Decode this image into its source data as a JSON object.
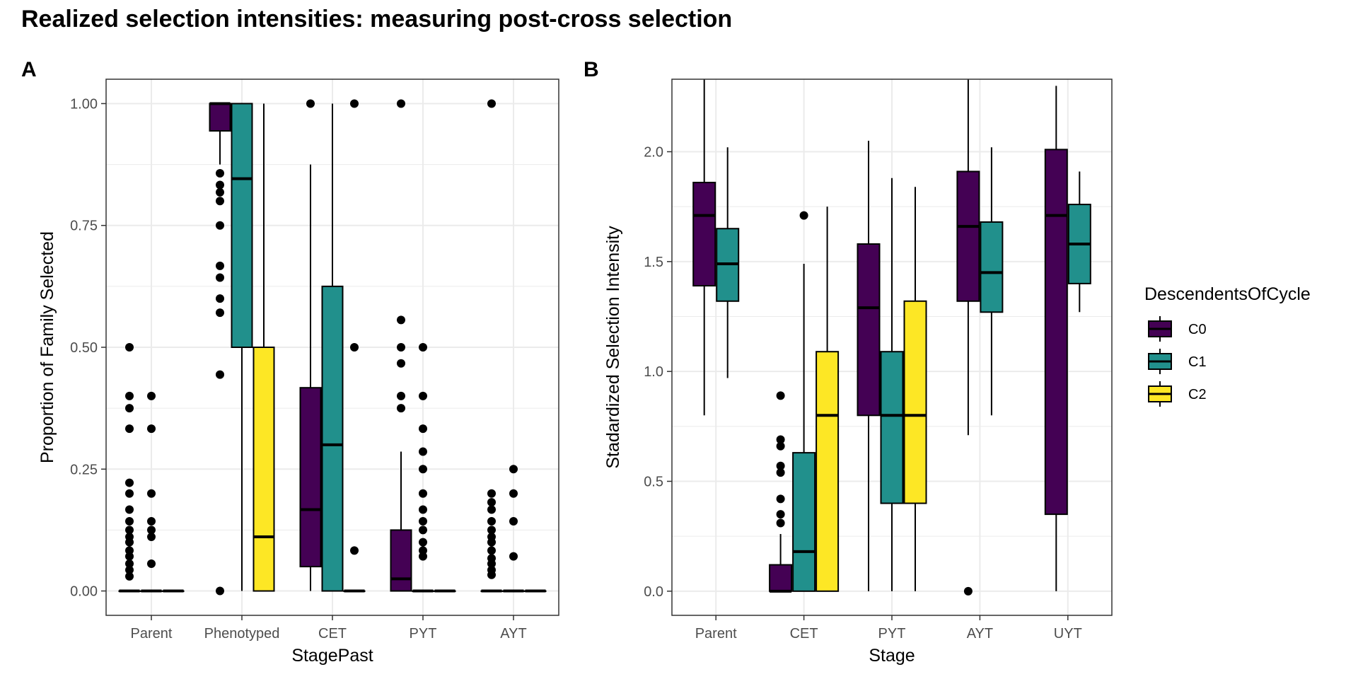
{
  "title": "Realized selection intensities: measuring post-cross selection",
  "legend": {
    "title": "DescendentsOfCycle",
    "position": "right",
    "entries": [
      "C0",
      "C1",
      "C2"
    ]
  },
  "colors": {
    "C0": "#440154",
    "C1": "#21908C",
    "C2": "#FDE725",
    "grid": "#ebebeb",
    "axis_text": "#4d4d4d"
  },
  "chart_data": [
    {
      "type": "box",
      "tag": "A",
      "xlabel": "StagePast",
      "ylabel": "Proportion of Family Selected",
      "ylim": [
        -0.05,
        1.05
      ],
      "yticks": [
        0,
        0.25,
        0.5,
        0.75,
        1
      ],
      "ytick_labels": [
        "0.00",
        "0.25",
        "0.50",
        "0.75",
        "1.00"
      ],
      "grid": true,
      "categories": [
        "Parent",
        "Phenotyped",
        "CET",
        "PYT",
        "AYT"
      ],
      "boxes": [
        {
          "category": "Parent",
          "series": "C0",
          "q1": 0,
          "median": 0,
          "q3": 0,
          "lower": 0,
          "upper": 0,
          "outliers": [
            0.5,
            0.4,
            0.375,
            0.333,
            0.222,
            0.2,
            0.167,
            0.143,
            0.125,
            0.111,
            0.1,
            0.083,
            0.071,
            0.056,
            0.043,
            0.03
          ]
        },
        {
          "category": "Parent",
          "series": "C1",
          "q1": 0,
          "median": 0,
          "q3": 0,
          "lower": 0,
          "upper": 0,
          "outliers": [
            0.4,
            0.333,
            0.2,
            0.143,
            0.125,
            0.111,
            0.056
          ]
        },
        {
          "category": "Parent",
          "series": "C2",
          "q1": 0,
          "median": 0,
          "q3": 0,
          "lower": 0,
          "upper": 0,
          "outliers": []
        },
        {
          "category": "Phenotyped",
          "series": "C0",
          "q1": 0.944,
          "median": 1,
          "q3": 1,
          "lower": 0.875,
          "upper": 1,
          "outliers": [
            0.857,
            0.833,
            0.818,
            0.8,
            0.75,
            0.667,
            0.643,
            0.6,
            0.571,
            0.444,
            0
          ]
        },
        {
          "category": "Phenotyped",
          "series": "C1",
          "q1": 0.5,
          "median": 0.846,
          "q3": 1,
          "lower": 0,
          "upper": 1,
          "outliers": []
        },
        {
          "category": "Phenotyped",
          "series": "C2",
          "q1": 0,
          "median": 0.111,
          "q3": 0.5,
          "lower": 0,
          "upper": 1,
          "outliers": []
        },
        {
          "category": "CET",
          "series": "C0",
          "q1": 0.05,
          "median": 0.167,
          "q3": 0.417,
          "lower": 0,
          "upper": 0.875,
          "outliers": [
            1
          ]
        },
        {
          "category": "CET",
          "series": "C1",
          "q1": 0,
          "median": 0.3,
          "q3": 0.625,
          "lower": 0,
          "upper": 1,
          "outliers": []
        },
        {
          "category": "CET",
          "series": "C2",
          "q1": 0,
          "median": 0,
          "q3": 0,
          "lower": 0,
          "upper": 0,
          "outliers": [
            1,
            0.5,
            0.083
          ]
        },
        {
          "category": "PYT",
          "series": "C0",
          "q1": 0,
          "median": 0.025,
          "q3": 0.125,
          "lower": 0,
          "upper": 0.286,
          "outliers": [
            1,
            0.556,
            0.5,
            0.467,
            0.4,
            0.375
          ]
        },
        {
          "category": "PYT",
          "series": "C1",
          "q1": 0,
          "median": 0,
          "q3": 0,
          "lower": 0,
          "upper": 0,
          "outliers": [
            0.5,
            0.4,
            0.333,
            0.286,
            0.25,
            0.2,
            0.167,
            0.143,
            0.125,
            0.1,
            0.083,
            0.071
          ]
        },
        {
          "category": "PYT",
          "series": "C2",
          "q1": 0,
          "median": 0,
          "q3": 0,
          "lower": 0,
          "upper": 0,
          "outliers": []
        },
        {
          "category": "AYT",
          "series": "C0",
          "q1": 0,
          "median": 0,
          "q3": 0,
          "lower": 0,
          "upper": 0,
          "outliers": [
            1,
            0.2,
            0.182,
            0.167,
            0.143,
            0.125,
            0.111,
            0.1,
            0.083,
            0.067,
            0.056,
            0.043,
            0.033
          ]
        },
        {
          "category": "AYT",
          "series": "C1",
          "q1": 0,
          "median": 0,
          "q3": 0,
          "lower": 0,
          "upper": 0,
          "outliers": [
            0.25,
            0.2,
            0.143,
            0.071
          ]
        },
        {
          "category": "AYT",
          "series": "C2",
          "q1": 0,
          "median": 0,
          "q3": 0,
          "lower": 0,
          "upper": 0,
          "outliers": []
        }
      ]
    },
    {
      "type": "box",
      "tag": "B",
      "xlabel": "Stage",
      "ylabel": "Stadardized Selection Intensity",
      "ylim": [
        -0.11,
        2.33
      ],
      "yticks": [
        0,
        0.5,
        1,
        1.5,
        2
      ],
      "ytick_labels": [
        "0.0",
        "0.5",
        "1.0",
        "1.5",
        "2.0"
      ],
      "grid": true,
      "categories": [
        "Parent",
        "CET",
        "PYT",
        "AYT",
        "UYT"
      ],
      "boxes": [
        {
          "category": "Parent",
          "series": "C0",
          "q1": 1.39,
          "median": 1.71,
          "q3": 1.86,
          "lower": 0.8,
          "upper": 2.33,
          "outliers": []
        },
        {
          "category": "Parent",
          "series": "C1",
          "q1": 1.32,
          "median": 1.49,
          "q3": 1.65,
          "lower": 0.97,
          "upper": 2.02,
          "outliers": []
        },
        {
          "category": "CET",
          "series": "C0",
          "q1": 0,
          "median": 0,
          "q3": 0.12,
          "lower": 0,
          "upper": 0.26,
          "outliers": [
            0.89,
            0.69,
            0.66,
            0.57,
            0.54,
            0.42,
            0.35,
            0.31
          ]
        },
        {
          "category": "CET",
          "series": "C1",
          "q1": 0,
          "median": 0.18,
          "q3": 0.63,
          "lower": 0,
          "upper": 1.49,
          "outliers": [
            1.71
          ]
        },
        {
          "category": "CET",
          "series": "C2",
          "q1": 0,
          "median": 0.8,
          "q3": 1.09,
          "lower": 0,
          "upper": 1.75,
          "outliers": []
        },
        {
          "category": "PYT",
          "series": "C0",
          "q1": 0.8,
          "median": 1.29,
          "q3": 1.58,
          "lower": 0,
          "upper": 2.05,
          "outliers": []
        },
        {
          "category": "PYT",
          "series": "C1",
          "q1": 0.4,
          "median": 0.8,
          "q3": 1.09,
          "lower": 0,
          "upper": 1.88,
          "outliers": []
        },
        {
          "category": "PYT",
          "series": "C2",
          "q1": 0.4,
          "median": 0.8,
          "q3": 1.32,
          "lower": 0,
          "upper": 1.84,
          "outliers": []
        },
        {
          "category": "AYT",
          "series": "C0",
          "q1": 1.32,
          "median": 1.66,
          "q3": 1.91,
          "lower": 0.71,
          "upper": 2.33,
          "outliers": [
            0
          ]
        },
        {
          "category": "AYT",
          "series": "C1",
          "q1": 1.27,
          "median": 1.45,
          "q3": 1.68,
          "lower": 0.8,
          "upper": 2.02,
          "outliers": []
        },
        {
          "category": "UYT",
          "series": "C0",
          "q1": 0.35,
          "median": 1.71,
          "q3": 2.01,
          "lower": 0,
          "upper": 2.3,
          "outliers": []
        },
        {
          "category": "UYT",
          "series": "C1",
          "q1": 1.4,
          "median": 1.58,
          "q3": 1.76,
          "lower": 1.27,
          "upper": 1.91,
          "outliers": []
        }
      ]
    }
  ]
}
